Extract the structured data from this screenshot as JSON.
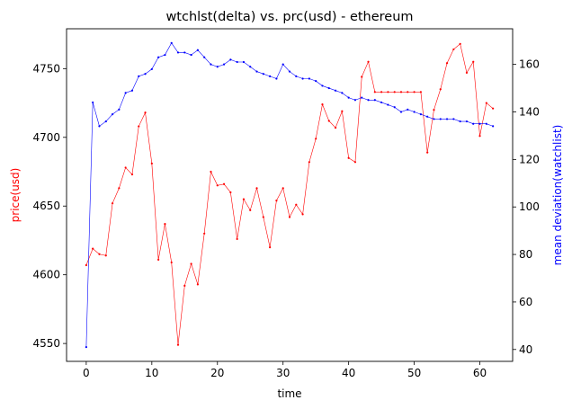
{
  "chart_data": {
    "type": "line",
    "title": "wtchlst(delta) vs. prc(usd) - ethereum",
    "xlabel": "time",
    "ylabel_left": "price(usd)",
    "ylabel_right": "mean deviation(watchlist)",
    "xlim": [
      -3,
      65
    ],
    "ylim_left": [
      4537,
      4779
    ],
    "ylim_right": [
      35,
      175
    ],
    "xticks": [
      0,
      10,
      20,
      30,
      40,
      50,
      60
    ],
    "yticks_left": [
      4550,
      4600,
      4650,
      4700,
      4750
    ],
    "yticks_right": [
      40,
      60,
      80,
      100,
      120,
      140,
      160
    ],
    "grid": false,
    "colors": {
      "left_series": "#ff0000",
      "right_series": "#0000ff",
      "left_label": "#ff0000",
      "right_label": "#0000ff"
    },
    "x": [
      0,
      1,
      2,
      3,
      4,
      5,
      6,
      7,
      8,
      9,
      10,
      11,
      12,
      13,
      14,
      15,
      16,
      17,
      18,
      19,
      20,
      21,
      22,
      23,
      24,
      25,
      26,
      27,
      28,
      29,
      30,
      31,
      32,
      33,
      34,
      35,
      36,
      37,
      38,
      39,
      40,
      41,
      42,
      43,
      44,
      45,
      46,
      47,
      48,
      49,
      50,
      51,
      52,
      53,
      54,
      55,
      56,
      57,
      58,
      59,
      60,
      61,
      62
    ],
    "series": [
      {
        "axis": "left",
        "color": "#ff0000",
        "values": [
          4607,
          4619,
          4615,
          4614,
          4652,
          4663,
          4678,
          4673,
          4708,
          4718,
          4681,
          4611,
          4637,
          4609,
          4549,
          4592,
          4608,
          4593,
          4630,
          4675,
          4665,
          4666,
          4660,
          4626,
          4655,
          4647,
          4663,
          4642,
          4620,
          4654,
          4663,
          4642,
          4651,
          4644,
          4682,
          4699,
          4724,
          4712,
          4707,
          4719,
          4685,
          4682,
          4744,
          4755,
          4733,
          4733,
          4733,
          4733,
          4733,
          4733,
          4733,
          4733,
          4689,
          4720,
          4735,
          4754,
          4764,
          4768,
          4747,
          4755,
          4701,
          4725,
          4721
        ]
      },
      {
        "axis": "right",
        "color": "#0000ff",
        "values": [
          41,
          144,
          134,
          136,
          139,
          141,
          148,
          149,
          155,
          156,
          158,
          163,
          164,
          169,
          165,
          165,
          164,
          166,
          163,
          160,
          159,
          160,
          162,
          161,
          161,
          159,
          157,
          156,
          155,
          154,
          160,
          157,
          155,
          154,
          154,
          153,
          151,
          150,
          149,
          148,
          146,
          145,
          146,
          145,
          145,
          144,
          143,
          142,
          140,
          141,
          140,
          139,
          138,
          137,
          137,
          137,
          137,
          136,
          136,
          135,
          135,
          135,
          134
        ]
      }
    ]
  }
}
